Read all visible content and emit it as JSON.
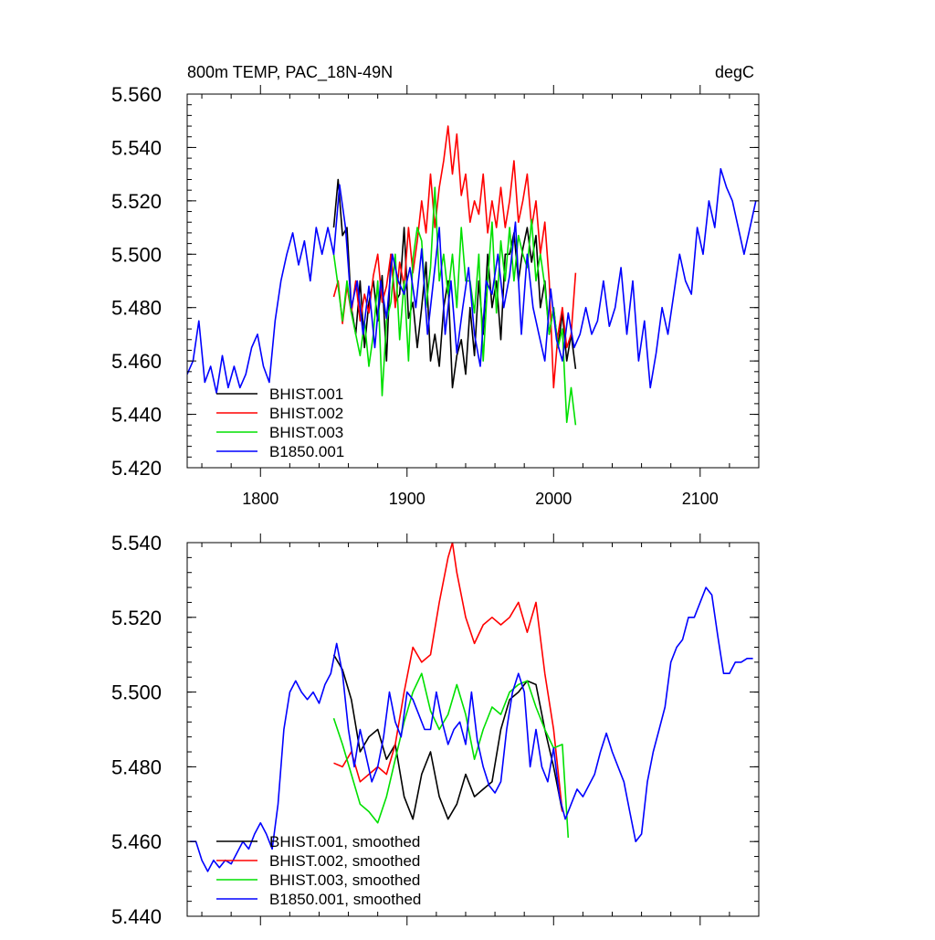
{
  "chart_data": [
    {
      "type": "line",
      "title": "800m TEMP, PAC_18N-49N",
      "units_label": "degC",
      "xlim": [
        1750,
        2140
      ],
      "ylim": [
        5.42,
        5.56
      ],
      "xticks": [
        1800,
        1900,
        2000,
        2100
      ],
      "yticks": [
        5.42,
        5.44,
        5.46,
        5.48,
        5.5,
        5.52,
        5.54,
        5.56
      ],
      "ytick_labels": [
        "5.420",
        "5.440",
        "5.460",
        "5.480",
        "5.500",
        "5.520",
        "5.540",
        "5.560"
      ],
      "series": [
        {
          "name": "BHIST.001",
          "color": "#000000",
          "x": [
            1850,
            1853,
            1856,
            1859,
            1862,
            1865,
            1868,
            1871,
            1874,
            1877,
            1880,
            1883,
            1886,
            1889,
            1892,
            1895,
            1898,
            1901,
            1904,
            1907,
            1910,
            1913,
            1916,
            1919,
            1922,
            1925,
            1928,
            1931,
            1934,
            1937,
            1940,
            1943,
            1946,
            1949,
            1952,
            1955,
            1958,
            1961,
            1964,
            1967,
            1970,
            1973,
            1976,
            1979,
            1982,
            1985,
            1988,
            1991,
            1994,
            1997,
            2000,
            2003,
            2006,
            2009,
            2012,
            2015
          ],
          "values": [
            5.51,
            5.528,
            5.507,
            5.51,
            5.48,
            5.47,
            5.49,
            5.465,
            5.482,
            5.49,
            5.475,
            5.492,
            5.46,
            5.5,
            5.482,
            5.485,
            5.51,
            5.476,
            5.482,
            5.465,
            5.48,
            5.497,
            5.46,
            5.47,
            5.458,
            5.48,
            5.49,
            5.45,
            5.462,
            5.468,
            5.455,
            5.48,
            5.462,
            5.49,
            5.47,
            5.5,
            5.48,
            5.49,
            5.468,
            5.5,
            5.5,
            5.508,
            5.49,
            5.502,
            5.51,
            5.497,
            5.507,
            5.48,
            5.49,
            5.47,
            5.48,
            5.465,
            5.478,
            5.46,
            5.47,
            5.457
          ]
        },
        {
          "name": "BHIST.002",
          "color": "#ff0000",
          "x": [
            1850,
            1853,
            1856,
            1859,
            1862,
            1865,
            1868,
            1871,
            1874,
            1877,
            1880,
            1883,
            1886,
            1889,
            1892,
            1895,
            1898,
            1901,
            1904,
            1907,
            1910,
            1913,
            1916,
            1919,
            1922,
            1925,
            1928,
            1931,
            1934,
            1937,
            1940,
            1943,
            1946,
            1949,
            1952,
            1955,
            1958,
            1961,
            1964,
            1967,
            1970,
            1973,
            1976,
            1979,
            1982,
            1985,
            1988,
            1991,
            1994,
            1997,
            2000,
            2003,
            2006,
            2009,
            2012,
            2015
          ],
          "values": [
            5.484,
            5.49,
            5.474,
            5.488,
            5.478,
            5.49,
            5.475,
            5.485,
            5.478,
            5.492,
            5.5,
            5.482,
            5.488,
            5.5,
            5.48,
            5.497,
            5.488,
            5.51,
            5.493,
            5.505,
            5.52,
            5.508,
            5.53,
            5.51,
            5.525,
            5.535,
            5.548,
            5.53,
            5.545,
            5.522,
            5.53,
            5.512,
            5.52,
            5.515,
            5.53,
            5.508,
            5.52,
            5.51,
            5.525,
            5.51,
            5.52,
            5.535,
            5.512,
            5.52,
            5.53,
            5.51,
            5.52,
            5.5,
            5.512,
            5.49,
            5.45,
            5.47,
            5.48,
            5.465,
            5.47,
            5.493
          ]
        },
        {
          "name": "BHIST.003",
          "color": "#00e000",
          "x": [
            1850,
            1853,
            1856,
            1859,
            1862,
            1865,
            1868,
            1871,
            1874,
            1877,
            1880,
            1883,
            1886,
            1889,
            1892,
            1895,
            1898,
            1901,
            1904,
            1907,
            1910,
            1913,
            1916,
            1919,
            1922,
            1925,
            1928,
            1931,
            1934,
            1937,
            1940,
            1943,
            1946,
            1949,
            1952,
            1955,
            1958,
            1961,
            1964,
            1967,
            1970,
            1973,
            1976,
            1979,
            1982,
            1985,
            1988,
            1991,
            1994,
            1997,
            2000,
            2003,
            2006,
            2009,
            2012,
            2015
          ],
          "values": [
            5.5,
            5.488,
            5.475,
            5.49,
            5.478,
            5.47,
            5.462,
            5.475,
            5.458,
            5.47,
            5.49,
            5.447,
            5.475,
            5.482,
            5.5,
            5.468,
            5.49,
            5.46,
            5.498,
            5.51,
            5.505,
            5.48,
            5.495,
            5.525,
            5.49,
            5.5,
            5.485,
            5.5,
            5.48,
            5.51,
            5.49,
            5.49,
            5.478,
            5.5,
            5.46,
            5.49,
            5.512,
            5.478,
            5.505,
            5.49,
            5.51,
            5.49,
            5.507,
            5.5,
            5.495,
            5.513,
            5.49,
            5.5,
            5.488,
            5.47,
            5.48,
            5.465,
            5.472,
            5.437,
            5.45,
            5.436
          ]
        },
        {
          "name": "B1850.001",
          "color": "#0000ff",
          "x": [
            1750,
            1754,
            1758,
            1762,
            1766,
            1770,
            1774,
            1778,
            1782,
            1786,
            1790,
            1794,
            1798,
            1802,
            1806,
            1810,
            1814,
            1818,
            1822,
            1826,
            1830,
            1834,
            1838,
            1842,
            1846,
            1850,
            1854,
            1858,
            1862,
            1866,
            1870,
            1874,
            1878,
            1882,
            1886,
            1890,
            1894,
            1898,
            1902,
            1906,
            1910,
            1914,
            1918,
            1922,
            1926,
            1930,
            1934,
            1938,
            1942,
            1946,
            1950,
            1954,
            1958,
            1962,
            1966,
            1970,
            1974,
            1978,
            1982,
            1986,
            1990,
            1994,
            1998,
            2002,
            2006,
            2010,
            2014,
            2018,
            2022,
            2026,
            2030,
            2034,
            2038,
            2042,
            2046,
            2050,
            2054,
            2058,
            2062,
            2066,
            2070,
            2074,
            2078,
            2082,
            2086,
            2090,
            2094,
            2098,
            2102,
            2106,
            2110,
            2114,
            2118,
            2122,
            2126,
            2130,
            2134,
            2138
          ],
          "values": [
            5.455,
            5.46,
            5.475,
            5.452,
            5.458,
            5.448,
            5.462,
            5.45,
            5.458,
            5.45,
            5.455,
            5.465,
            5.47,
            5.458,
            5.452,
            5.475,
            5.49,
            5.5,
            5.508,
            5.496,
            5.505,
            5.49,
            5.51,
            5.5,
            5.51,
            5.5,
            5.526,
            5.51,
            5.48,
            5.49,
            5.47,
            5.488,
            5.465,
            5.49,
            5.476,
            5.5,
            5.49,
            5.485,
            5.495,
            5.48,
            5.502,
            5.47,
            5.49,
            5.51,
            5.47,
            5.49,
            5.463,
            5.48,
            5.495,
            5.47,
            5.458,
            5.49,
            5.485,
            5.5,
            5.48,
            5.492,
            5.512,
            5.47,
            5.5,
            5.48,
            5.47,
            5.46,
            5.487,
            5.468,
            5.46,
            5.478,
            5.465,
            5.47,
            5.48,
            5.47,
            5.475,
            5.49,
            5.473,
            5.48,
            5.495,
            5.47,
            5.49,
            5.46,
            5.475,
            5.45,
            5.463,
            5.48,
            5.47,
            5.485,
            5.5,
            5.49,
            5.485,
            5.51,
            5.5,
            5.52,
            5.51,
            5.532,
            5.525,
            5.52,
            5.51,
            5.5,
            5.51,
            5.52
          ]
        }
      ]
    },
    {
      "type": "line",
      "xlim": [
        1750,
        2140
      ],
      "ylim": [
        5.44,
        5.54
      ],
      "xticks": [
        1800,
        1900,
        2000,
        2100
      ],
      "yticks": [
        5.44,
        5.46,
        5.48,
        5.5,
        5.52,
        5.54
      ],
      "ytick_labels": [
        "5.440",
        "5.460",
        "5.480",
        "5.500",
        "5.520",
        "5.540"
      ],
      "series": [
        {
          "name": "BHIST.001, smoothed",
          "color": "#000000",
          "x": [
            1850,
            1856,
            1862,
            1868,
            1874,
            1880,
            1886,
            1892,
            1898,
            1904,
            1910,
            1916,
            1922,
            1928,
            1934,
            1940,
            1946,
            1952,
            1958,
            1964,
            1970,
            1976,
            1982,
            1988,
            1994,
            2000,
            2006
          ],
          "values": [
            5.51,
            5.506,
            5.498,
            5.484,
            5.488,
            5.49,
            5.482,
            5.486,
            5.472,
            5.466,
            5.478,
            5.484,
            5.472,
            5.466,
            5.47,
            5.478,
            5.472,
            5.474,
            5.476,
            5.49,
            5.498,
            5.5,
            5.503,
            5.502,
            5.49,
            5.48,
            5.468
          ]
        },
        {
          "name": "BHIST.002, smoothed",
          "color": "#ff0000",
          "x": [
            1850,
            1856,
            1862,
            1868,
            1874,
            1880,
            1886,
            1892,
            1898,
            1904,
            1910,
            1916,
            1922,
            1928,
            1931,
            1934,
            1940,
            1946,
            1952,
            1958,
            1964,
            1970,
            1976,
            1982,
            1988,
            1994,
            2000,
            2006
          ],
          "values": [
            5.481,
            5.48,
            5.484,
            5.476,
            5.478,
            5.48,
            5.478,
            5.486,
            5.5,
            5.512,
            5.508,
            5.51,
            5.524,
            5.536,
            5.54,
            5.532,
            5.52,
            5.513,
            5.518,
            5.52,
            5.518,
            5.52,
            5.524,
            5.516,
            5.524,
            5.505,
            5.49,
            5.468
          ]
        },
        {
          "name": "BHIST.003, smoothed",
          "color": "#00e000",
          "x": [
            1850,
            1856,
            1862,
            1868,
            1874,
            1880,
            1886,
            1892,
            1898,
            1904,
            1910,
            1916,
            1922,
            1928,
            1934,
            1940,
            1946,
            1952,
            1958,
            1964,
            1970,
            1976,
            1982,
            1988,
            1994,
            2000,
            2006,
            2010
          ],
          "values": [
            5.493,
            5.486,
            5.478,
            5.47,
            5.468,
            5.465,
            5.472,
            5.482,
            5.492,
            5.5,
            5.505,
            5.495,
            5.49,
            5.494,
            5.502,
            5.494,
            5.482,
            5.49,
            5.496,
            5.494,
            5.5,
            5.502,
            5.503,
            5.496,
            5.49,
            5.485,
            5.486,
            5.461
          ]
        },
        {
          "name": "B1850.001, smoothed",
          "color": "#0000ff",
          "x": [
            1752,
            1756,
            1760,
            1764,
            1768,
            1772,
            1776,
            1780,
            1784,
            1788,
            1792,
            1796,
            1800,
            1804,
            1808,
            1812,
            1816,
            1820,
            1824,
            1828,
            1832,
            1836,
            1840,
            1844,
            1848,
            1852,
            1856,
            1860,
            1864,
            1868,
            1872,
            1876,
            1880,
            1884,
            1888,
            1892,
            1896,
            1900,
            1904,
            1908,
            1912,
            1916,
            1920,
            1924,
            1928,
            1932,
            1936,
            1940,
            1944,
            1948,
            1952,
            1956,
            1960,
            1964,
            1968,
            1972,
            1976,
            1980,
            1984,
            1988,
            1992,
            1996,
            2000,
            2004,
            2008,
            2012,
            2016,
            2020,
            2024,
            2028,
            2032,
            2036,
            2040,
            2044,
            2048,
            2052,
            2056,
            2060,
            2064,
            2068,
            2072,
            2076,
            2080,
            2084,
            2088,
            2092,
            2096,
            2100,
            2104,
            2108,
            2112,
            2116,
            2120,
            2124,
            2128,
            2132,
            2136
          ],
          "values": [
            5.46,
            5.46,
            5.455,
            5.452,
            5.455,
            5.453,
            5.455,
            5.454,
            5.457,
            5.46,
            5.458,
            5.462,
            5.465,
            5.462,
            5.458,
            5.47,
            5.49,
            5.5,
            5.503,
            5.5,
            5.498,
            5.5,
            5.497,
            5.502,
            5.505,
            5.513,
            5.505,
            5.49,
            5.48,
            5.49,
            5.483,
            5.476,
            5.48,
            5.488,
            5.5,
            5.492,
            5.488,
            5.5,
            5.498,
            5.494,
            5.49,
            5.49,
            5.5,
            5.492,
            5.486,
            5.49,
            5.492,
            5.486,
            5.5,
            5.487,
            5.48,
            5.475,
            5.473,
            5.476,
            5.49,
            5.5,
            5.505,
            5.5,
            5.48,
            5.49,
            5.48,
            5.476,
            5.485,
            5.472,
            5.466,
            5.47,
            5.474,
            5.472,
            5.475,
            5.478,
            5.484,
            5.489,
            5.484,
            5.48,
            5.476,
            5.468,
            5.46,
            5.462,
            5.476,
            5.484,
            5.49,
            5.496,
            5.508,
            5.512,
            5.514,
            5.52,
            5.52,
            5.524,
            5.528,
            5.526,
            5.515,
            5.505,
            5.505,
            5.508,
            5.508,
            5.509,
            5.509
          ]
        }
      ]
    }
  ]
}
